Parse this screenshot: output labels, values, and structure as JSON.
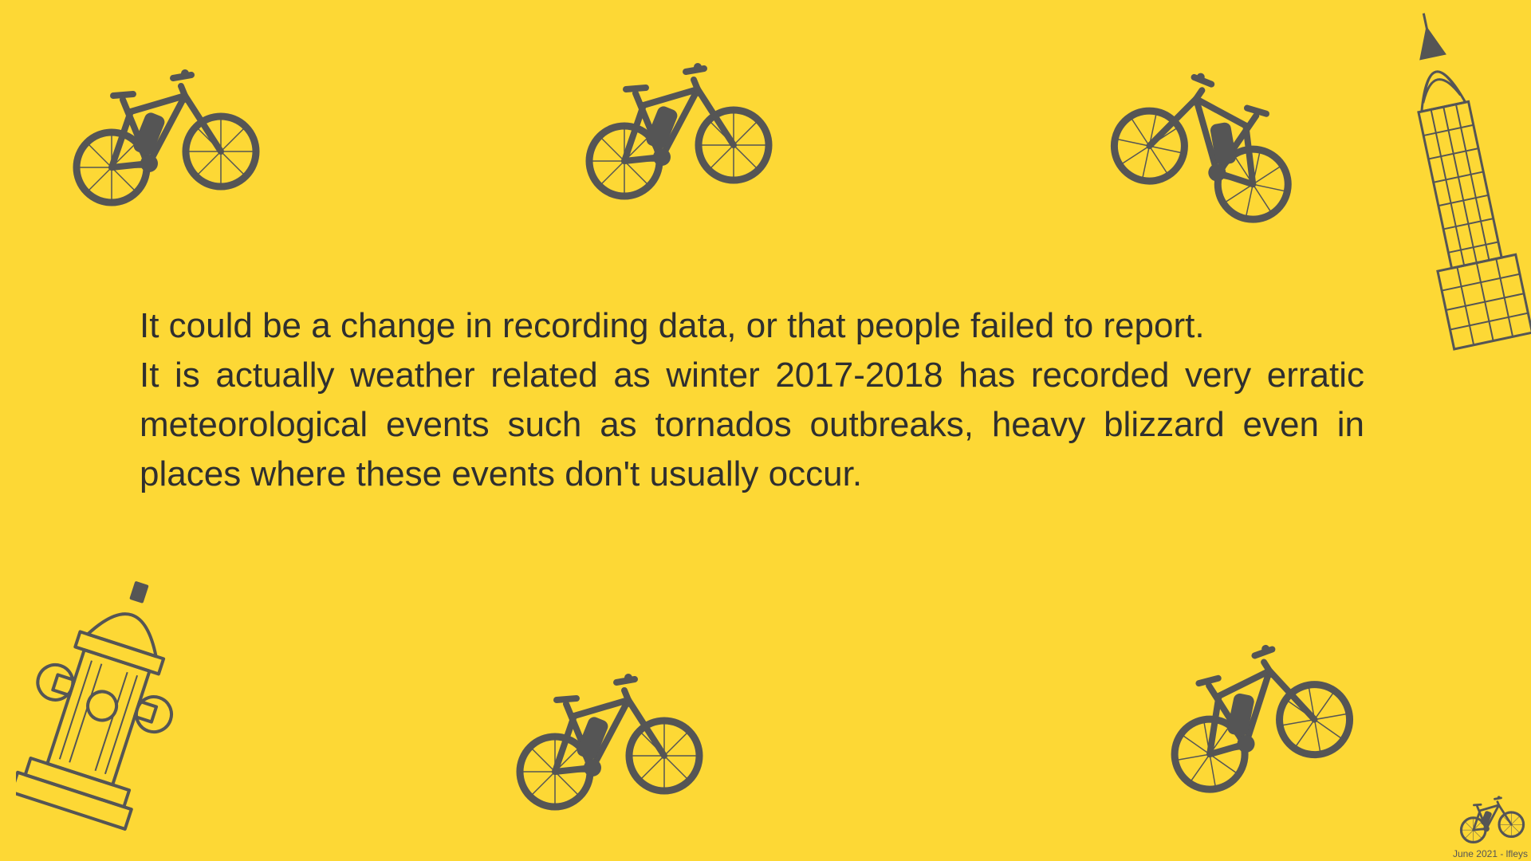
{
  "theme": {
    "background": "#FDD835",
    "ink": "#555555",
    "text": "#2f2f2f"
  },
  "slide": {
    "paragraphs": [
      "It could be a change in recording data, or that people failed to report.",
      "It is actually weather related as winter 2017-2018 has recorded very erratic meteorological events such as tornados outbreaks, heavy blizzard even in places where these events don't usually occur."
    ],
    "footer": "June 2021 - lfleys"
  },
  "decorations": {
    "bikes": [
      "e-bike-icon",
      "e-bike-icon",
      "e-bike-icon",
      "e-bike-icon",
      "e-bike-icon"
    ],
    "building": "chrysler-building-icon",
    "hydrant": "fire-hydrant-icon",
    "logo": "e-bike-logo-icon"
  }
}
